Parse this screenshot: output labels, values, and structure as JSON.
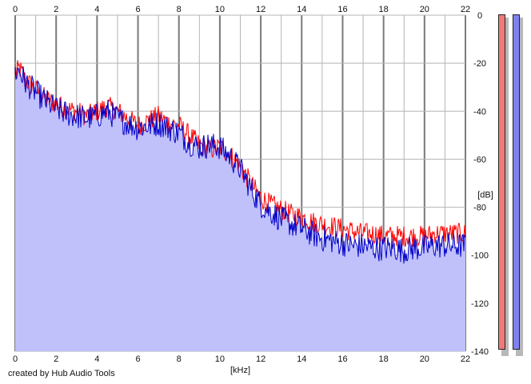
{
  "chart_data": {
    "type": "area",
    "title": "",
    "xlabel": "[kHz]",
    "ylabel": "[dB]",
    "xlim": [
      0,
      22
    ],
    "ylim": [
      -140,
      0
    ],
    "x_ticks": [
      "0",
      "2",
      "4",
      "6",
      "8",
      "10",
      "12",
      "14",
      "16",
      "18",
      "20",
      "22"
    ],
    "y_ticks": [
      "0",
      "-20",
      "-40",
      "-60",
      "-80",
      "-100",
      "-120",
      "-140"
    ],
    "grid": true,
    "colors": {
      "fill": "#c0c0fb",
      "red_series": "#ff0000",
      "blue_series": "#0000c8",
      "grid": "#b4b4b4",
      "major_grid": "#7a7a7a"
    },
    "series": [
      {
        "color": "red",
        "x": [
          0.0,
          0.2,
          0.5,
          1.0,
          1.5,
          2.0,
          2.5,
          3.0,
          3.5,
          4.0,
          4.5,
          5.0,
          5.5,
          6.0,
          6.5,
          7.0,
          7.5,
          8.0,
          8.5,
          9.0,
          9.5,
          10.0,
          10.5,
          11.0,
          11.5,
          12.0,
          12.5,
          13.0,
          13.5,
          14.0,
          14.5,
          15.0,
          15.5,
          16.0,
          16.5,
          17.0,
          17.5,
          18.0,
          18.5,
          19.0,
          19.5,
          20.0,
          20.5,
          21.0,
          21.5,
          22.0
        ],
        "values": [
          -25,
          -22,
          -27,
          -31,
          -35,
          -37,
          -39,
          -40,
          -42,
          -40,
          -38,
          -40,
          -43,
          -46,
          -44,
          -42,
          -45,
          -46,
          -50,
          -54,
          -56,
          -55,
          -58,
          -63,
          -70,
          -76,
          -79,
          -81,
          -83,
          -84,
          -86,
          -87,
          -88,
          -89,
          -90,
          -91,
          -91,
          -92,
          -92,
          -92,
          -92,
          -92,
          -91,
          -91,
          -91,
          -91
        ]
      },
      {
        "color": "blue",
        "x": [
          0.0,
          0.2,
          0.5,
          1.0,
          1.5,
          2.0,
          2.5,
          3.0,
          3.5,
          4.0,
          4.5,
          5.0,
          5.5,
          6.0,
          6.5,
          7.0,
          7.5,
          8.0,
          8.5,
          9.0,
          9.5,
          10.0,
          10.5,
          11.0,
          11.5,
          12.0,
          12.5,
          13.0,
          13.5,
          14.0,
          14.5,
          15.0,
          15.5,
          16.0,
          16.5,
          17.0,
          17.5,
          18.0,
          18.5,
          19.0,
          19.5,
          20.0,
          20.5,
          21.0,
          21.5,
          22.0
        ],
        "values": [
          -24,
          -23,
          -28,
          -32,
          -36,
          -39,
          -41,
          -42,
          -43,
          -42,
          -40,
          -43,
          -45,
          -47,
          -46,
          -45,
          -47,
          -49,
          -53,
          -55,
          -54,
          -55,
          -59,
          -64,
          -72,
          -79,
          -82,
          -85,
          -87,
          -89,
          -91,
          -93,
          -94,
          -95,
          -96,
          -96,
          -97,
          -97,
          -97,
          -98,
          -97,
          -97,
          -96,
          -96,
          -96,
          -96
        ]
      }
    ]
  },
  "footer": {
    "credit": "created by Hub Audio Tools"
  }
}
